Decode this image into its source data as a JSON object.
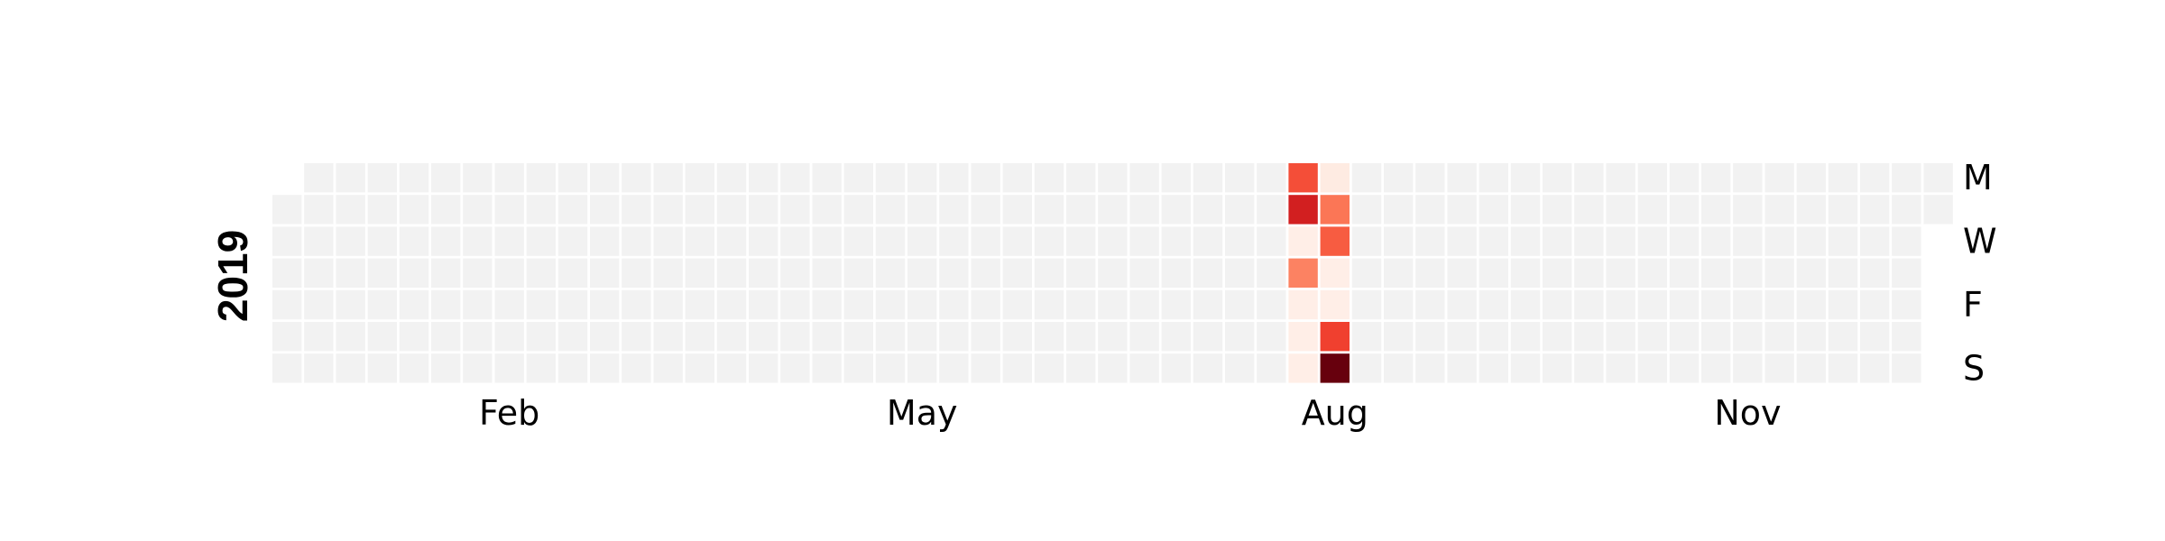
{
  "chart_data": {
    "type": "heatmap",
    "title": "",
    "year_label": "2019",
    "year": 2019,
    "xlabel": "",
    "ylabel": "",
    "month_ticks": [
      {
        "label": "Feb",
        "week": 7
      },
      {
        "label": "May",
        "week": 20
      },
      {
        "label": "Aug",
        "week": 33
      },
      {
        "label": "Nov",
        "week": 46
      }
    ],
    "day_ticks": [
      {
        "label": "M",
        "row": 0
      },
      {
        "label": "W",
        "row": 2
      },
      {
        "label": "F",
        "row": 4
      },
      {
        "label": "S",
        "row": 6
      }
    ],
    "first_weekday_row": 1,
    "weeks": 53,
    "last_week_rows": 2,
    "colors": {
      "empty": "#f2f2f2",
      "cell_border": "#ffffff",
      "scale": [
        "#fff5f0",
        "#fcbba1",
        "#fc9272",
        "#fb6a4a",
        "#ef3b2c",
        "#cb181d",
        "#67000d"
      ]
    },
    "vmax": 10,
    "values": [
      {
        "date": "2019-08-12",
        "value": 6
      },
      {
        "date": "2019-08-13",
        "value": 8
      },
      {
        "date": "2019-08-14",
        "value": 0.2
      },
      {
        "date": "2019-08-15",
        "value": 4
      },
      {
        "date": "2019-08-16",
        "value": 0.2
      },
      {
        "date": "2019-08-17",
        "value": 0.2
      },
      {
        "date": "2019-08-18",
        "value": 0.2
      },
      {
        "date": "2019-08-19",
        "value": 0.3
      },
      {
        "date": "2019-08-20",
        "value": 4.5
      },
      {
        "date": "2019-08-21",
        "value": 5.5
      },
      {
        "date": "2019-08-22",
        "value": 0.2
      },
      {
        "date": "2019-08-23",
        "value": 0.2
      },
      {
        "date": "2019-08-24",
        "value": 6.5
      },
      {
        "date": "2019-08-25",
        "value": 10
      }
    ]
  }
}
